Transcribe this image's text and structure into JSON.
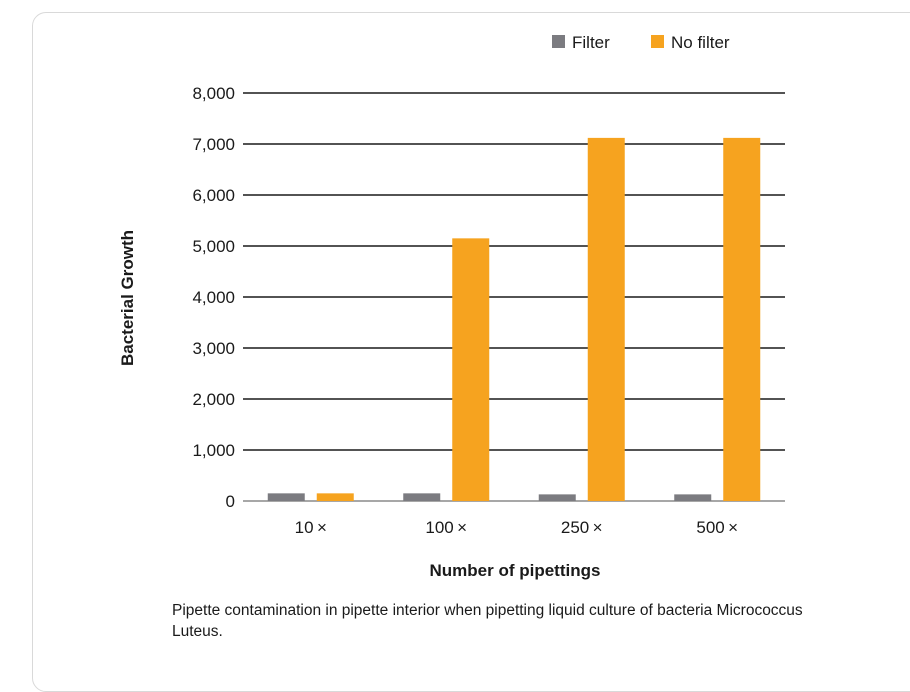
{
  "chart_data": {
    "type": "bar",
    "title": "",
    "xlabel": "Number of pipettings",
    "ylabel": "Bacterial Growth",
    "categories": [
      "10 ×",
      "100 ×",
      "250 ×",
      "500 ×"
    ],
    "series": [
      {
        "name": "Filter",
        "values": [
          150,
          150,
          130,
          130
        ]
      },
      {
        "name": "No filter",
        "values": [
          150,
          5150,
          7120,
          7120
        ]
      }
    ],
    "ylim": [
      0,
      8000
    ],
    "yticks": [
      0,
      1000,
      2000,
      3000,
      4000,
      5000,
      6000,
      7000,
      8000
    ],
    "ytick_labels": [
      "0",
      "1,000",
      "2,000",
      "3,000",
      "4,000",
      "5,000",
      "6,000",
      "7,000",
      "8,000"
    ],
    "grid": true,
    "legend_position": "top-right",
    "colors": {
      "Filter": "#7b7b80",
      "No filter": "#f6a31f",
      "grid": "#1a1a1a"
    }
  },
  "caption": "Pipette contamination in pipette interior when pipetting liquid culture of bacteria Micrococcus Luteus."
}
